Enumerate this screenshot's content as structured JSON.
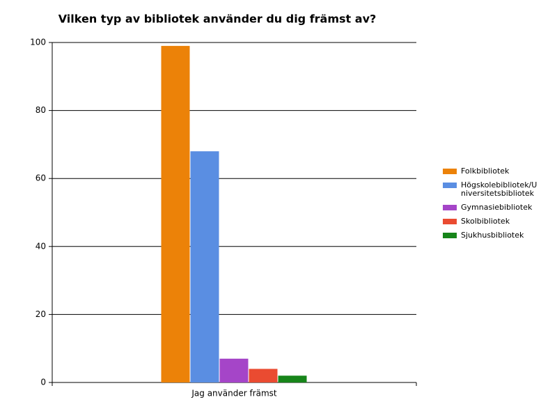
{
  "chart_data": {
    "type": "bar",
    "title": "Vilken typ av bibliotek använder du dig främst av?",
    "categories": [
      "Jag använder främst"
    ],
    "series": [
      {
        "name": "Folkbibliotek",
        "color": "#ec8208",
        "values": [
          99
        ]
      },
      {
        "name": "Högskolebibliotek/Universitetsbibliotek",
        "color": "#5a8ee2",
        "values": [
          68
        ]
      },
      {
        "name": "Gymnasiebibliotek",
        "color": "#a545c8",
        "values": [
          7
        ]
      },
      {
        "name": "Skolbibliotek",
        "color": "#ea4b31",
        "values": [
          4
        ]
      },
      {
        "name": "Sjukhusbibliotek",
        "color": "#17851a",
        "values": [
          2
        ]
      }
    ],
    "ylim": [
      0,
      100
    ],
    "yticks": [
      0,
      20,
      40,
      60,
      80,
      100
    ],
    "grid": true,
    "legend": "right"
  }
}
